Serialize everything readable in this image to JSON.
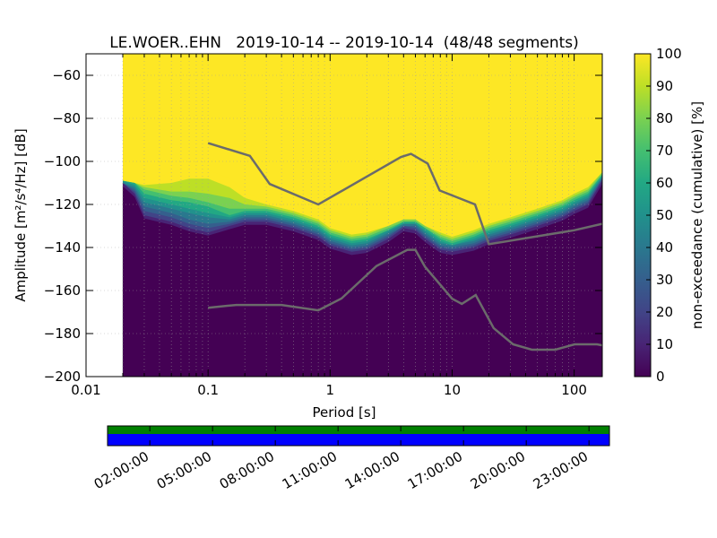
{
  "chart_data": {
    "type": "heatmap",
    "title": "LE.WOER..EHN   2019-10-14 -- 2019-10-14  (48/48 segments)",
    "xlabel": "Period [s]",
    "ylabel": "Amplitude [m²/s⁴/Hz] [dB]",
    "x_scale": "log",
    "xlim": [
      0.01,
      170
    ],
    "ylim": [
      -200,
      -50
    ],
    "x_ticks": [
      {
        "value": 0.01,
        "label": "0.01"
      },
      {
        "value": 0.1,
        "label": "0.1"
      },
      {
        "value": 1,
        "label": "1"
      },
      {
        "value": 10,
        "label": "10"
      },
      {
        "value": 100,
        "label": "100"
      }
    ],
    "y_ticks": [
      {
        "value": -60,
        "label": "−60"
      },
      {
        "value": -80,
        "label": "−80"
      },
      {
        "value": -100,
        "label": "−100"
      },
      {
        "value": -120,
        "label": "−120"
      },
      {
        "value": -140,
        "label": "−140"
      },
      {
        "value": -160,
        "label": "−160"
      },
      {
        "value": -180,
        "label": "−180"
      },
      {
        "value": -200,
        "label": "−200"
      }
    ],
    "grid": true,
    "data_min_period": 0.02,
    "colorbar": {
      "label": "non-exceedance (cumulative) [%]",
      "range": [
        0,
        100
      ],
      "ticks": [
        {
          "value": 0,
          "label": "0"
        },
        {
          "value": 10,
          "label": "10"
        },
        {
          "value": 20,
          "label": "20"
        },
        {
          "value": 30,
          "label": "30"
        },
        {
          "value": 40,
          "label": "40"
        },
        {
          "value": 50,
          "label": "50"
        },
        {
          "value": 60,
          "label": "60"
        },
        {
          "value": 70,
          "label": "70"
        },
        {
          "value": 80,
          "label": "80"
        },
        {
          "value": 90,
          "label": "90"
        },
        {
          "value": 100,
          "label": "100"
        }
      ],
      "colors": [
        {
          "value": 0,
          "color": "#440154"
        },
        {
          "value": 10,
          "color": "#482475"
        },
        {
          "value": 20,
          "color": "#414487"
        },
        {
          "value": 30,
          "color": "#355f8d"
        },
        {
          "value": 40,
          "color": "#2a788e"
        },
        {
          "value": 50,
          "color": "#21918c"
        },
        {
          "value": 60,
          "color": "#22a884"
        },
        {
          "value": 70,
          "color": "#44bf70"
        },
        {
          "value": 80,
          "color": "#7ad151"
        },
        {
          "value": 90,
          "color": "#bddf26"
        },
        {
          "value": 100,
          "color": "#fde725"
        }
      ]
    },
    "psd_boundaries": {
      "comment": "amplitude (dB) at which cumulative non-exceedance reaches each level, per period",
      "periods": [
        0.02,
        0.025,
        0.03,
        0.05,
        0.07,
        0.1,
        0.15,
        0.2,
        0.3,
        0.5,
        0.8,
        1,
        1.5,
        2,
        3,
        4,
        5,
        6,
        8,
        10,
        15,
        20,
        30,
        50,
        80,
        100,
        130,
        170
      ],
      "levels": [
        {
          "level": 5,
          "values": [
            -110,
            -115,
            -125,
            -128,
            -131,
            -133,
            -130,
            -128,
            -128,
            -131,
            -135,
            -139,
            -142,
            -141,
            -136,
            -131,
            -132,
            -136,
            -141,
            -142,
            -140,
            -137,
            -134,
            -130,
            -126,
            -123,
            -120,
            -109
          ]
        },
        {
          "level": 15,
          "values": [
            -110,
            -114,
            -123,
            -126,
            -129,
            -131,
            -129,
            -127,
            -127,
            -130,
            -134,
            -138,
            -141,
            -140,
            -135,
            -130,
            -131,
            -135,
            -140,
            -141,
            -139,
            -136,
            -133,
            -129,
            -125,
            -122,
            -119,
            -108
          ]
        },
        {
          "level": 25,
          "values": [
            -110,
            -113,
            -121,
            -124,
            -127,
            -129,
            -128,
            -126,
            -126,
            -129,
            -133,
            -137,
            -140,
            -139,
            -134,
            -130,
            -130,
            -134,
            -139,
            -140,
            -138,
            -135,
            -132,
            -128,
            -124,
            -121,
            -118,
            -108
          ]
        },
        {
          "level": 35,
          "values": [
            -110,
            -112,
            -119,
            -122,
            -124,
            -126,
            -127,
            -125,
            -125,
            -128,
            -132,
            -136,
            -139,
            -138,
            -133,
            -129,
            -129,
            -133,
            -138,
            -139,
            -137,
            -134,
            -131,
            -127,
            -123,
            -120,
            -117,
            -107
          ]
        },
        {
          "level": 45,
          "values": [
            -109,
            -111,
            -117,
            -120,
            -122,
            -124,
            -126,
            -124,
            -124,
            -127,
            -131,
            -135,
            -138,
            -137,
            -132,
            -129,
            -129,
            -132,
            -137,
            -139,
            -136,
            -133,
            -130,
            -126,
            -122,
            -119,
            -116,
            -107
          ]
        },
        {
          "level": 55,
          "values": [
            -109,
            -110,
            -115,
            -118,
            -119,
            -121,
            -125,
            -123,
            -123,
            -126,
            -130,
            -134,
            -137,
            -136,
            -132,
            -128,
            -128,
            -131,
            -136,
            -138,
            -135,
            -132,
            -129,
            -125,
            -121,
            -118,
            -115,
            -106
          ]
        },
        {
          "level": 65,
          "values": [
            -109,
            -110,
            -113,
            -116,
            -117,
            -119,
            -122,
            -122,
            -122,
            -125,
            -129,
            -133,
            -136,
            -135,
            -131,
            -128,
            -128,
            -131,
            -135,
            -137,
            -134,
            -131,
            -128,
            -124,
            -120,
            -117,
            -114,
            -106
          ]
        },
        {
          "level": 75,
          "values": [
            -109,
            -110,
            -112,
            -114,
            -114,
            -115,
            -117,
            -120,
            -121,
            -124,
            -128,
            -132,
            -135,
            -134,
            -130,
            -127,
            -127,
            -130,
            -134,
            -136,
            -133,
            -130,
            -127,
            -123,
            -119,
            -116,
            -113,
            -105
          ]
        },
        {
          "level": 85,
          "values": [
            -109,
            -110,
            -111,
            -110,
            -108,
            -108,
            -112,
            -117,
            -120,
            -123,
            -127,
            -131,
            -134,
            -133,
            -130,
            -127,
            -127,
            -130,
            -133,
            -135,
            -132,
            -129,
            -126,
            -122,
            -118,
            -115,
            -112,
            -105
          ]
        },
        {
          "level": 95,
          "values": [
            -108,
            -109,
            -110,
            -105,
            -102,
            -104,
            -108,
            -114,
            -119,
            -122,
            -126,
            -130,
            -133,
            -132,
            -129,
            -126,
            -126,
            -129,
            -132,
            -134,
            -131,
            -128,
            -125,
            -121,
            -117,
            -114,
            -111,
            -104
          ]
        }
      ]
    },
    "noise_models": [
      {
        "name": "high-noise-model",
        "x": [
          0.1,
          0.22,
          0.32,
          0.8,
          3.8,
          4.6,
          6.3,
          7.9,
          15.4,
          20,
          100,
          170
        ],
        "y": [
          -91.5,
          -97.4,
          -110.5,
          -120,
          -98,
          -96.5,
          -101,
          -113.5,
          -120,
          -138.5,
          -132,
          -129
        ]
      },
      {
        "name": "low-noise-model",
        "x": [
          0.1,
          0.17,
          0.4,
          0.8,
          1.24,
          2.4,
          4.3,
          5,
          6,
          10,
          12,
          15.6,
          21.9,
          31.6,
          45,
          70,
          101,
          154,
          170
        ],
        "y": [
          -168,
          -166.7,
          -166.7,
          -169.2,
          -163.7,
          -148.6,
          -141.1,
          -141.1,
          -149,
          -163.8,
          -166.2,
          -162.1,
          -177.5,
          -185,
          -187.5,
          -187.5,
          -185,
          -185,
          -185.5
        ]
      }
    ],
    "coverage": {
      "data_color": "#008000",
      "gap_color": "#0000ff",
      "time_ticks": [
        "02:00:00",
        "05:00:00",
        "08:00:00",
        "11:00:00",
        "14:00:00",
        "17:00:00",
        "20:00:00",
        "23:00:00"
      ]
    }
  }
}
